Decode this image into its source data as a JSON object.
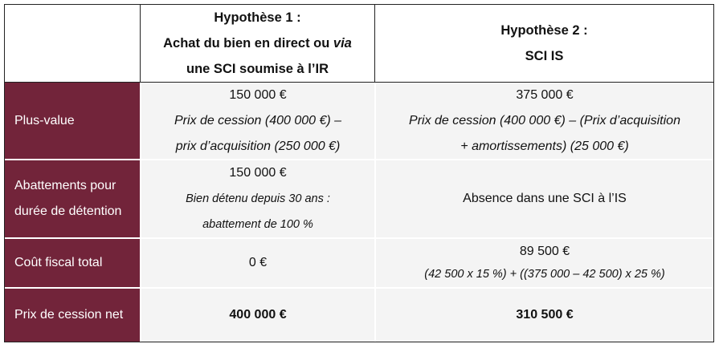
{
  "header": {
    "col1": {
      "title": "Hypothèse 1 :",
      "line2_pre": "Achat du bien en direct ou ",
      "line2_it": "via",
      "line3": "une SCI soumise à l’IR"
    },
    "col2": {
      "title": "Hypothèse 2 :",
      "line2": "SCI IS"
    }
  },
  "rows": [
    {
      "label": "Plus-value",
      "h1": {
        "value": "150 000 €",
        "note1": "Prix de cession (400 000 €) –",
        "note2": "prix d’acquisition (250 000 €)"
      },
      "h2": {
        "value": "375 000 €",
        "note1": "Prix de cession (400 000 €) – (Prix d’acquisition",
        "note2": "+ amortissements) (25 000 €)"
      }
    },
    {
      "label": "Abattements pour durée de détention",
      "h1": {
        "value": "150 000 €",
        "note1": "Bien détenu depuis 30 ans :",
        "note2": "abattement de 100 %"
      },
      "h2": {
        "value": "Absence dans une SCI à l’IS"
      }
    },
    {
      "label": "Coût fiscal total",
      "h1": {
        "value": "0 €"
      },
      "h2": {
        "value": "89 500 €",
        "note1": "(42 500 x 15 %) + ((375 000 – 42 500) x 25 %)"
      }
    },
    {
      "label": "Prix de cession net",
      "h1": {
        "value": "400 000 €"
      },
      "h2": {
        "value": "310 500 €"
      }
    }
  ],
  "colors": {
    "label_bg": "#72243a",
    "cell_bg": "#f4f4f4"
  }
}
